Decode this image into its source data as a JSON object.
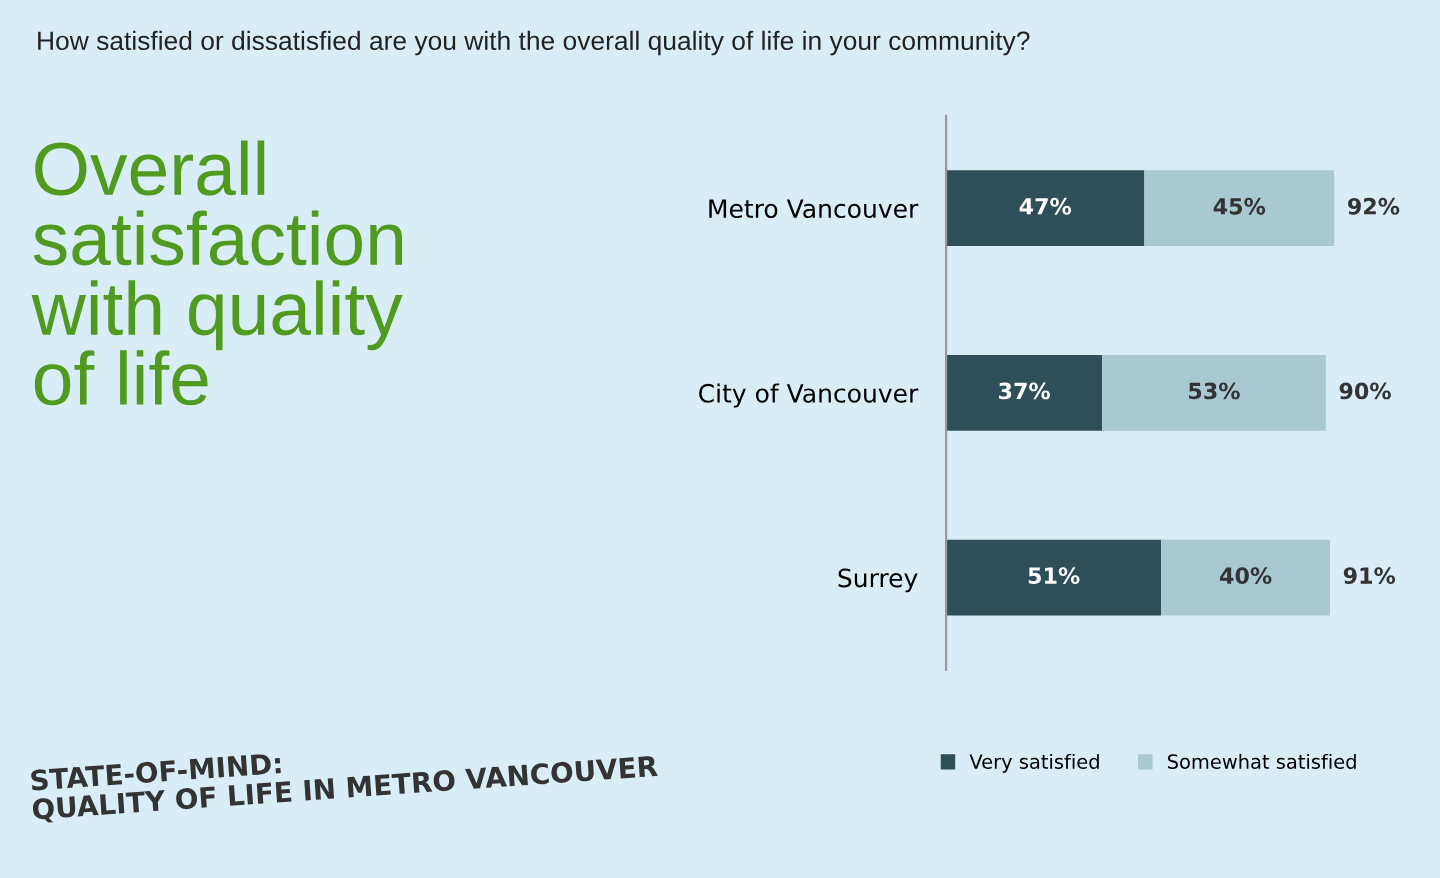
{
  "chart_data": {
    "type": "bar",
    "orientation": "horizontal",
    "stacked": true,
    "subtitle": "How satisfied or dissatisfied are you with the overall quality of life in your community?",
    "title": "Overall satisfaction with quality of life",
    "categories": [
      "Metro Vancouver",
      "City of Vancouver",
      "Surrey"
    ],
    "series": [
      {
        "name": "Very satisfied",
        "color": "#2e4f5a",
        "values": [
          47,
          37,
          51
        ],
        "value_labels": [
          "47%",
          "37%",
          "51%"
        ]
      },
      {
        "name": "Somewhat satisfied",
        "color": "#a8c8d2",
        "values": [
          45,
          53,
          40
        ],
        "value_labels": [
          "45%",
          "53%",
          "40%"
        ]
      }
    ],
    "totals": [
      "92%",
      "90%",
      "91%"
    ],
    "tick_labels": "y",
    "grid": false,
    "legend": "bottom",
    "annotations": [
      "STATE-OF-MIND:\nQUALITY OF LIFE IN METRO VANCOUVER"
    ]
  }
}
